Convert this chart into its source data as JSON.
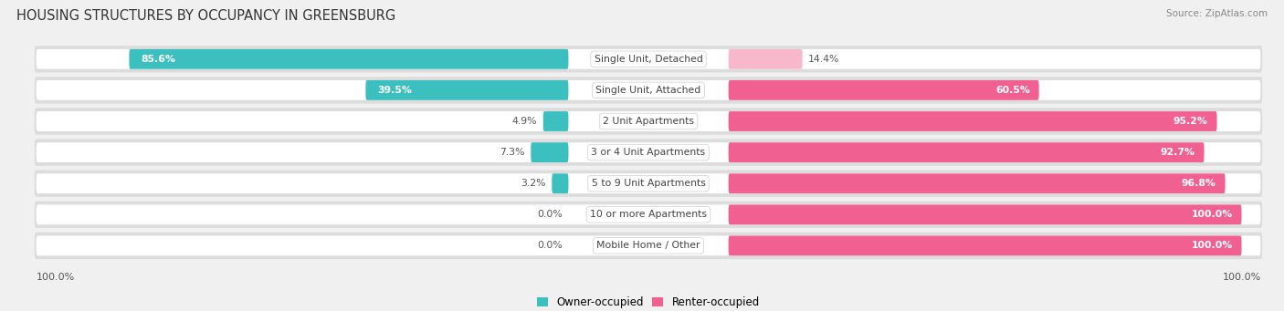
{
  "title": "HOUSING STRUCTURES BY OCCUPANCY IN GREENSBURG",
  "source": "Source: ZipAtlas.com",
  "categories": [
    "Single Unit, Detached",
    "Single Unit, Attached",
    "2 Unit Apartments",
    "3 or 4 Unit Apartments",
    "5 to 9 Unit Apartments",
    "10 or more Apartments",
    "Mobile Home / Other"
  ],
  "owner_pct": [
    85.6,
    39.5,
    4.9,
    7.3,
    3.2,
    0.0,
    0.0
  ],
  "renter_pct": [
    14.4,
    60.5,
    95.2,
    92.7,
    96.8,
    100.0,
    100.0
  ],
  "owner_color": "#3bbfbf",
  "renter_color": "#f06090",
  "renter_color_light": "#f8b8cc",
  "bg_color": "#f0f0f0",
  "row_bg": "#e8e8e8",
  "bar_bg": "#ffffff",
  "title_fontsize": 10.5,
  "label_fontsize": 7.8,
  "pct_fontsize": 7.8,
  "tick_fontsize": 8,
  "legend_fontsize": 8.5,
  "owner_pct_labels": [
    "85.6%",
    "39.5%",
    "4.9%",
    "7.3%",
    "3.2%",
    "0.0%",
    "0.0%"
  ],
  "renter_pct_labels": [
    "14.4%",
    "60.5%",
    "95.2%",
    "92.7%",
    "96.8%",
    "100.0%",
    "100.0%"
  ]
}
